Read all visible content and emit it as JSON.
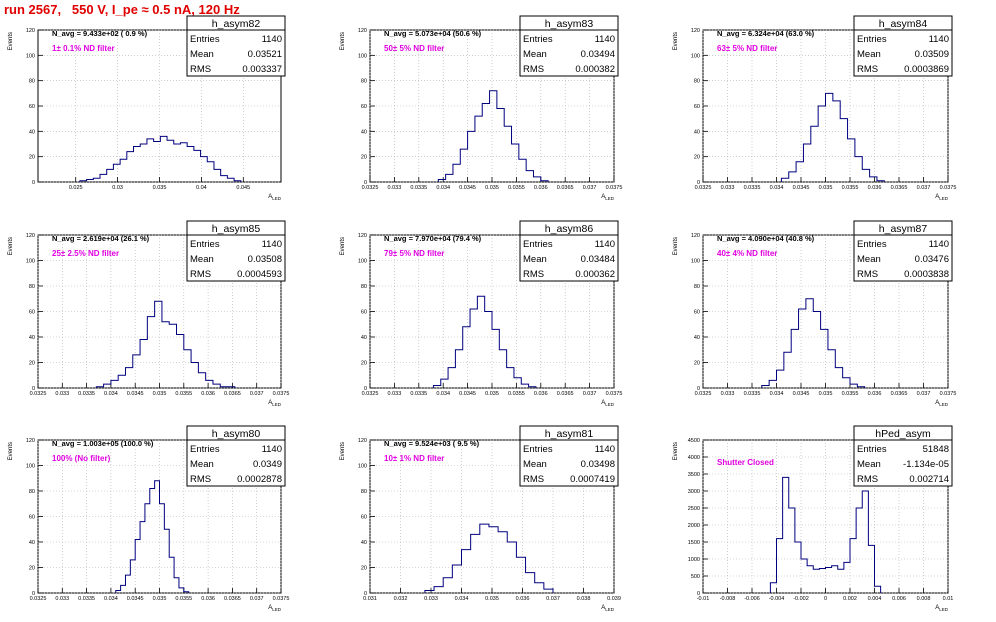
{
  "page_title": "run 2567,   550 V, I_pe ≈ 0.5 nA, 120 Hz",
  "y_axis_label": "Events",
  "x_axis_label": "A_LED",
  "stats_labels": {
    "entries": "Entries",
    "mean": "Mean",
    "rms": "RMS"
  },
  "colors": {
    "title": "#e00000",
    "note": "#e000e0",
    "histogram": "#00007f",
    "grid": "#b0b0b0"
  },
  "chart_data": [
    {
      "type": "histogram",
      "name": "h_asym82",
      "navg": "N_avg = 9.433e+02 ( 0.9 %)",
      "note": "1± 0.1% ND filter",
      "entries": "1140",
      "mean": "0.03521",
      "rms": "0.003337",
      "xlim": [
        0.0205,
        0.0495
      ],
      "ylim": [
        0,
        120
      ],
      "xticks": [
        0.025,
        0.03,
        0.035,
        0.04,
        0.045
      ],
      "xtick_labels": [
        "0.025",
        "0.03",
        "0.035",
        "0.04",
        "0.045"
      ],
      "yticks": [
        0,
        20,
        40,
        60,
        80,
        100,
        120
      ],
      "bin_edges": [
        0.0255,
        0.0263,
        0.0271,
        0.0279,
        0.0287,
        0.0295,
        0.0303,
        0.0311,
        0.0319,
        0.0327,
        0.0335,
        0.0343,
        0.0351,
        0.0359,
        0.0367,
        0.0375,
        0.0383,
        0.0391,
        0.0399,
        0.0407,
        0.0415,
        0.0423,
        0.0431,
        0.0439,
        0.0447
      ],
      "counts": [
        1,
        2,
        3,
        6,
        10,
        14,
        18,
        24,
        28,
        30,
        34,
        32,
        36,
        33,
        30,
        31,
        28,
        25,
        20,
        16,
        10,
        5,
        3,
        1
      ]
    },
    {
      "type": "histogram",
      "name": "h_asym83",
      "navg": "N_avg = 5.073e+04 (50.6 %)",
      "note": "50± 5% ND filter",
      "entries": "1140",
      "mean": "0.03494",
      "rms": "0.000382",
      "xlim": [
        0.0325,
        0.0375
      ],
      "ylim": [
        0,
        120
      ],
      "xticks": [
        0.0325,
        0.033,
        0.0335,
        0.034,
        0.0345,
        0.035,
        0.0355,
        0.036,
        0.0365,
        0.037,
        0.0375
      ],
      "xtick_labels": [
        "0.0325",
        "0.033",
        "0.0335",
        "0.034",
        "0.0345",
        "0.035",
        "0.0355",
        "0.036",
        "0.0365",
        "0.037",
        "0.0375"
      ],
      "yticks": [
        0,
        20,
        40,
        60,
        80,
        100,
        120
      ],
      "bin_edges": [
        0.0339,
        0.03405,
        0.0342,
        0.03435,
        0.0345,
        0.03465,
        0.0348,
        0.03495,
        0.0351,
        0.03525,
        0.0354,
        0.03555,
        0.0357,
        0.03585,
        0.036,
        0.03615
      ],
      "counts": [
        2,
        6,
        14,
        26,
        40,
        52,
        62,
        72,
        58,
        44,
        30,
        18,
        9,
        4,
        1
      ]
    },
    {
      "type": "histogram",
      "name": "h_asym84",
      "navg": "N_avg = 6.324e+04 (63.0 %)",
      "note": "63± 5% ND filter",
      "entries": "1140",
      "mean": "0.03509",
      "rms": "0.0003869",
      "xlim": [
        0.0325,
        0.0375
      ],
      "ylim": [
        0,
        120
      ],
      "xticks": [
        0.0325,
        0.033,
        0.0335,
        0.034,
        0.0345,
        0.035,
        0.0355,
        0.036,
        0.0365,
        0.037,
        0.0375
      ],
      "xtick_labels": [
        "0.0325",
        "0.033",
        "0.0335",
        "0.034",
        "0.0345",
        "0.035",
        "0.0355",
        "0.036",
        "0.0365",
        "0.037",
        "0.0375"
      ],
      "yticks": [
        0,
        20,
        40,
        60,
        80,
        100,
        120
      ],
      "bin_edges": [
        0.0341,
        0.03425,
        0.0344,
        0.03455,
        0.0347,
        0.03485,
        0.035,
        0.03515,
        0.0353,
        0.03545,
        0.0356,
        0.03575,
        0.0359,
        0.03605,
        0.0362
      ],
      "counts": [
        3,
        8,
        16,
        30,
        44,
        60,
        70,
        64,
        50,
        34,
        20,
        10,
        4,
        1
      ]
    },
    {
      "type": "histogram",
      "name": "h_asym85",
      "navg": "N_avg = 2.619e+04 (26.1 %)",
      "note": "25± 2.5% ND filter",
      "entries": "1140",
      "mean": "0.03508",
      "rms": "0.0004593",
      "xlim": [
        0.0325,
        0.0375
      ],
      "ylim": [
        0,
        120
      ],
      "xticks": [
        0.0325,
        0.033,
        0.0335,
        0.034,
        0.0345,
        0.035,
        0.0355,
        0.036,
        0.0365,
        0.037,
        0.0375
      ],
      "xtick_labels": [
        "0.0325",
        "0.033",
        "0.0335",
        "0.034",
        "0.0345",
        "0.035",
        "0.0355",
        "0.036",
        "0.0365",
        "0.037",
        "0.0375"
      ],
      "yticks": [
        0,
        20,
        40,
        60,
        80,
        100,
        120
      ],
      "bin_edges": [
        0.0337,
        0.03385,
        0.034,
        0.03415,
        0.0343,
        0.03445,
        0.0346,
        0.03475,
        0.0349,
        0.03505,
        0.0352,
        0.03535,
        0.0355,
        0.03565,
        0.0358,
        0.03595,
        0.0361,
        0.03625,
        0.0364,
        0.03655
      ],
      "counts": [
        1,
        3,
        6,
        10,
        16,
        26,
        38,
        56,
        68,
        52,
        50,
        42,
        30,
        20,
        12,
        6,
        3,
        1,
        1
      ]
    },
    {
      "type": "histogram",
      "name": "h_asym86",
      "navg": "N_avg = 7.970e+04 (79.4 %)",
      "note": "79± 5% ND filter",
      "entries": "1140",
      "mean": "0.03484",
      "rms": "0.000362",
      "xlim": [
        0.0325,
        0.0375
      ],
      "ylim": [
        0,
        120
      ],
      "xticks": [
        0.0325,
        0.033,
        0.0335,
        0.034,
        0.0345,
        0.035,
        0.0355,
        0.036,
        0.0365,
        0.037,
        0.0375
      ],
      "xtick_labels": [
        "0.0325",
        "0.033",
        "0.0335",
        "0.034",
        "0.0345",
        "0.035",
        "0.0355",
        "0.036",
        "0.0365",
        "0.037",
        "0.0375"
      ],
      "yticks": [
        0,
        20,
        40,
        60,
        80,
        100,
        120
      ],
      "bin_edges": [
        0.0338,
        0.03395,
        0.0341,
        0.03425,
        0.0344,
        0.03455,
        0.0347,
        0.03485,
        0.035,
        0.03515,
        0.0353,
        0.03545,
        0.0356,
        0.03575,
        0.0359
      ],
      "counts": [
        2,
        7,
        16,
        30,
        48,
        62,
        72,
        60,
        46,
        30,
        16,
        8,
        3,
        1
      ]
    },
    {
      "type": "histogram",
      "name": "h_asym87",
      "navg": "N_avg = 4.090e+04 (40.8 %)",
      "note": "40± 4% ND filter",
      "entries": "1140",
      "mean": "0.03476",
      "rms": "0.0003838",
      "xlim": [
        0.0325,
        0.0375
      ],
      "ylim": [
        0,
        120
      ],
      "xticks": [
        0.0325,
        0.033,
        0.0335,
        0.034,
        0.0345,
        0.035,
        0.0355,
        0.036,
        0.0365,
        0.037,
        0.0375
      ],
      "xtick_labels": [
        "0.0325",
        "0.033",
        "0.0335",
        "0.034",
        "0.0345",
        "0.035",
        "0.0355",
        "0.036",
        "0.0365",
        "0.037",
        "0.0375"
      ],
      "yticks": [
        0,
        20,
        40,
        60,
        80,
        100,
        120
      ],
      "bin_edges": [
        0.0337,
        0.03385,
        0.034,
        0.03415,
        0.0343,
        0.03445,
        0.0346,
        0.03475,
        0.0349,
        0.03505,
        0.0352,
        0.03535,
        0.0355,
        0.03565,
        0.0358
      ],
      "counts": [
        2,
        6,
        14,
        28,
        46,
        62,
        70,
        60,
        46,
        30,
        16,
        8,
        3,
        1
      ]
    },
    {
      "type": "histogram",
      "name": "h_asym80",
      "navg": "N_avg = 1.003e+05 (100.0 %)",
      "note": "100% (No filter)",
      "entries": "1140",
      "mean": "0.0349",
      "rms": "0.0002878",
      "xlim": [
        0.0325,
        0.0375
      ],
      "ylim": [
        0,
        120
      ],
      "xticks": [
        0.0325,
        0.033,
        0.0335,
        0.034,
        0.0345,
        0.035,
        0.0355,
        0.036,
        0.0365,
        0.037,
        0.0375
      ],
      "xtick_labels": [
        "0.0325",
        "0.033",
        "0.0335",
        "0.034",
        "0.0345",
        "0.035",
        "0.0355",
        "0.036",
        "0.0365",
        "0.037",
        "0.0375"
      ],
      "yticks": [
        0,
        20,
        40,
        60,
        80,
        100,
        120
      ],
      "bin_edges": [
        0.0341,
        0.0342,
        0.0343,
        0.0344,
        0.0345,
        0.0346,
        0.0347,
        0.0348,
        0.0349,
        0.035,
        0.0351,
        0.0352,
        0.0353,
        0.0354,
        0.0355,
        0.0356
      ],
      "counts": [
        2,
        6,
        14,
        26,
        42,
        56,
        70,
        82,
        88,
        70,
        50,
        28,
        12,
        4,
        1
      ]
    },
    {
      "type": "histogram",
      "name": "h_asym81",
      "navg": "N_avg = 9.524e+03 ( 9.5 %)",
      "note": "10± 1% ND filter",
      "entries": "1140",
      "mean": "0.03498",
      "rms": "0.0007419",
      "xlim": [
        0.031,
        0.039
      ],
      "ylim": [
        0,
        120
      ],
      "xticks": [
        0.031,
        0.032,
        0.033,
        0.034,
        0.035,
        0.036,
        0.037,
        0.038,
        0.039
      ],
      "xtick_labels": [
        "0.031",
        "0.032",
        "0.033",
        "0.034",
        "0.035",
        "0.036",
        "0.037",
        "0.038",
        "0.039"
      ],
      "yticks": [
        0,
        20,
        40,
        60,
        80,
        100,
        120
      ],
      "bin_edges": [
        0.0328,
        0.0331,
        0.0334,
        0.0337,
        0.034,
        0.0343,
        0.0346,
        0.0349,
        0.0352,
        0.0355,
        0.0358,
        0.0361,
        0.0364,
        0.0367,
        0.037
      ],
      "counts": [
        2,
        5,
        12,
        22,
        34,
        46,
        54,
        52,
        48,
        40,
        28,
        16,
        8,
        3
      ]
    },
    {
      "type": "histogram",
      "name": "hPed_asym",
      "navg": "",
      "note": "Shutter Closed",
      "entries": "51848",
      "mean": "-1.134e-05",
      "rms": "0.002714",
      "xlim": [
        -0.01,
        0.01
      ],
      "ylim": [
        0,
        4500
      ],
      "xticks": [
        -0.01,
        -0.008,
        -0.006,
        -0.004,
        -0.002,
        0,
        0.002,
        0.004,
        0.006,
        0.008,
        0.01
      ],
      "xtick_labels": [
        "-0.01",
        "-0.008",
        "-0.006",
        "-0.004",
        "-0.002",
        "0",
        "0.002",
        "0.004",
        "0.006",
        "0.008",
        "0.01"
      ],
      "yticks": [
        0,
        500,
        1000,
        1500,
        2000,
        2500,
        3000,
        3500,
        4000,
        4500
      ],
      "bin_edges": [
        -0.0045,
        -0.004,
        -0.0035,
        -0.003,
        -0.0025,
        -0.002,
        -0.0015,
        -0.001,
        -0.0005,
        0,
        0.0005,
        0.001,
        0.0015,
        0.002,
        0.0025,
        0.003,
        0.0035,
        0.004,
        0.0045
      ],
      "counts": [
        300,
        1600,
        3400,
        2500,
        1500,
        1000,
        800,
        700,
        720,
        750,
        800,
        700,
        900,
        1600,
        2500,
        3000,
        1400,
        200
      ]
    }
  ]
}
